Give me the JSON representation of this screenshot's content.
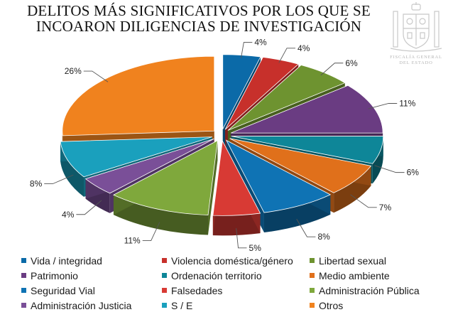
{
  "chart_data": {
    "type": "pie",
    "style": "3d-exploded",
    "title_lines": [
      "DELITOS MÁS SIGNIFICATIVOS POR LOS QUE SE",
      "INCOARON DILIGENCIAS DE INVESTIGACIÓN"
    ],
    "legend_placement": "bottom",
    "slices": [
      {
        "label": "Vida / integridad",
        "value": 4,
        "value_label": "4%",
        "color": "#0b6aa8"
      },
      {
        "label": "Violencia doméstica/género",
        "value": 4,
        "value_label": "4%",
        "color": "#c7302b"
      },
      {
        "label": "Libertad sexual",
        "value": 6,
        "value_label": "6%",
        "color": "#6e9330"
      },
      {
        "label": "Patrimonio",
        "value": 11,
        "value_label": "11%",
        "color": "#6a3c82"
      },
      {
        "label": "Ordenación territorio",
        "value": 6,
        "value_label": "6%",
        "color": "#0e8698"
      },
      {
        "label": "Medio ambiente",
        "value": 7,
        "value_label": "7%",
        "color": "#e0701b"
      },
      {
        "label": "Seguridad Vial",
        "value": 8,
        "value_label": "8%",
        "color": "#0f73b4"
      },
      {
        "label": "Falsedades",
        "value": 5,
        "value_label": "5%",
        "color": "#d83a34"
      },
      {
        "label": "Administración Pública",
        "value": 11,
        "value_label": "11%",
        "color": "#7fa83c"
      },
      {
        "label": "Administración Justicia",
        "value": 4,
        "value_label": "4%",
        "color": "#7a4f98"
      },
      {
        "label": "S / E",
        "value": 8,
        "value_label": "8%",
        "color": "#1aa0bd"
      },
      {
        "label": "Otros",
        "value": 26,
        "value_label": "26%",
        "color": "#f0821e"
      }
    ]
  },
  "emblem": {
    "name": "coat-of-arms-icon",
    "caption_lines": [
      "FISCALÍA GENERAL",
      "DEL ESTADO"
    ]
  }
}
